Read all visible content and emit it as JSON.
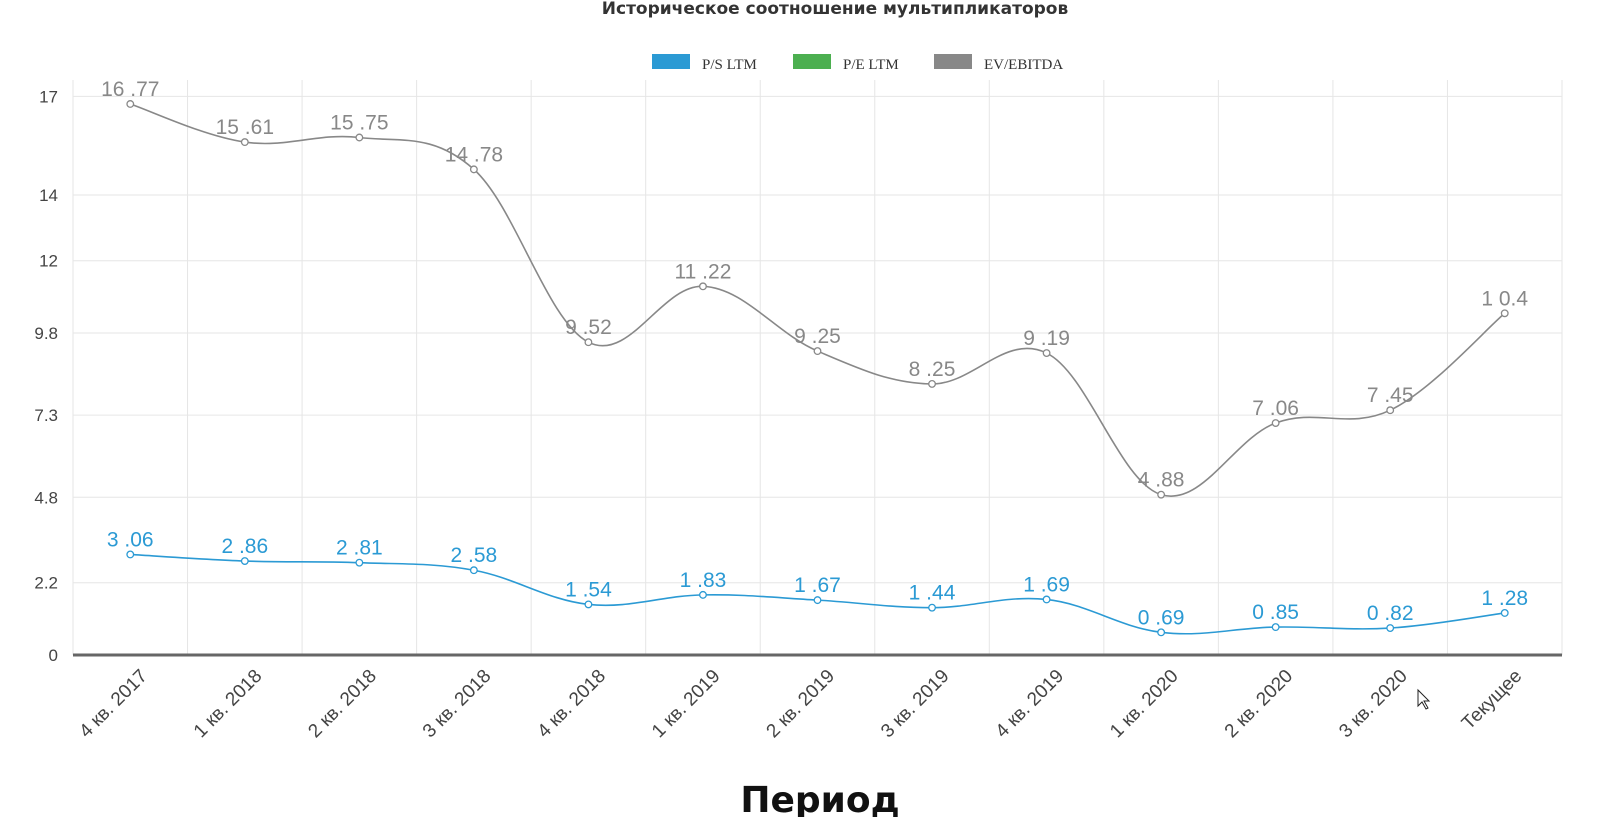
{
  "chart_data": {
    "type": "line",
    "title": "Историческое соотношение мультипликаторов",
    "xlabel": "Период",
    "ylabel": "",
    "categories": [
      "4 кв. 2017",
      "1 кв. 2018",
      "2 кв. 2018",
      "3 кв. 2018",
      "4 кв. 2018",
      "1 кв. 2019",
      "2 кв. 2019",
      "3 кв. 2019",
      "4 кв. 2019",
      "1 кв. 2020",
      "2 кв. 2020",
      "3 кв. 2020",
      "Текущее"
    ],
    "yticks": [
      "0",
      "2.2",
      "4.8",
      "7.3",
      "9.8",
      "12",
      "14",
      "17"
    ],
    "ylim": [
      0,
      17.5
    ],
    "grid": true,
    "legend_position": "top-center",
    "legend": [
      {
        "name": "P/S LTM",
        "color": "#2b9ad4"
      },
      {
        "name": "P/E LTM",
        "color": "#4caf50"
      },
      {
        "name": "EV/EBITDA",
        "color": "#888888"
      }
    ],
    "series": [
      {
        "name": "P/S LTM",
        "color": "#2b9ad4",
        "values": [
          3.06,
          2.86,
          2.81,
          2.58,
          1.54,
          1.83,
          1.67,
          1.44,
          1.69,
          0.69,
          0.85,
          0.82,
          1.28
        ],
        "labels": [
          "3 .06",
          "2 .86",
          "2 .81",
          "2 .58",
          "1 .54",
          "1 .83",
          "1 .67",
          "1 .44",
          "1 .69",
          "0 .69",
          "0 .85",
          "0 .82",
          "1 .28"
        ]
      },
      {
        "name": "EV/EBITDA",
        "color": "#888888",
        "values": [
          16.77,
          15.61,
          15.75,
          14.78,
          9.52,
          11.22,
          9.25,
          8.25,
          9.19,
          4.88,
          7.06,
          7.45,
          10.4
        ],
        "labels": [
          "16 .77",
          "15 .61",
          "15 .75",
          "14 .78",
          "9 .52",
          "11 .22",
          "9 .25",
          "8 .25",
          "9 .19",
          "4 .88",
          "7 .06",
          "7 .45",
          "1 0.4"
        ]
      }
    ]
  }
}
